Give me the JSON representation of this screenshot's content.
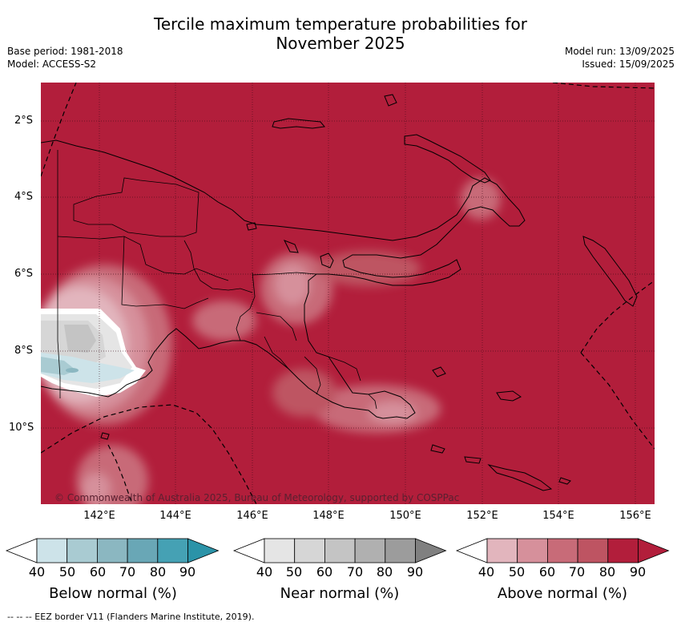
{
  "title": {
    "line1": "Tercile maximum temperature probabilities for",
    "line2": "November 2025"
  },
  "meta_left": {
    "base_period": "Base period: 1981-2018",
    "model": "Model: ACCESS-S2"
  },
  "meta_right": {
    "model_run": "Model run: 13/09/2025",
    "issued": "Issued: 15/09/2025"
  },
  "map": {
    "latitude_labels": [
      "2°S",
      "4°S",
      "6°S",
      "8°S",
      "10°S"
    ],
    "longitude_labels": [
      "142°E",
      "144°E",
      "146°E",
      "148°E",
      "150°E",
      "152°E",
      "154°E",
      "156°E"
    ],
    "background_category": "Above normal 80-90%",
    "copyright": "© Commonwealth of Australia 2025, Bureau of Meteorology, supported by COSPPac"
  },
  "legends": [
    {
      "label": "Below normal (%)",
      "ticks": [
        "40",
        "50",
        "60",
        "70",
        "80",
        "90"
      ],
      "colors": [
        "#ffffff",
        "#cde3e9",
        "#a9cbd2",
        "#8bb7c1",
        "#69a7b6",
        "#45a1b4",
        "#2b93a8"
      ]
    },
    {
      "label": "Near normal (%)",
      "ticks": [
        "40",
        "50",
        "60",
        "70",
        "80",
        "90"
      ],
      "colors": [
        "#ffffff",
        "#e5e5e5",
        "#d6d6d6",
        "#c4c4c4",
        "#b0b0b0",
        "#9c9c9c",
        "#808080"
      ]
    },
    {
      "label": "Above normal (%)",
      "ticks": [
        "40",
        "50",
        "60",
        "70",
        "80",
        "90"
      ],
      "colors": [
        "#ffffff",
        "#e2b5bd",
        "#d6909b",
        "#c86b78",
        "#be5462",
        "#b21e3b",
        "#b21e3b"
      ]
    }
  ],
  "footer": "--  --  -- EEZ border V11 (Flanders Marine Institute, 2019)."
}
